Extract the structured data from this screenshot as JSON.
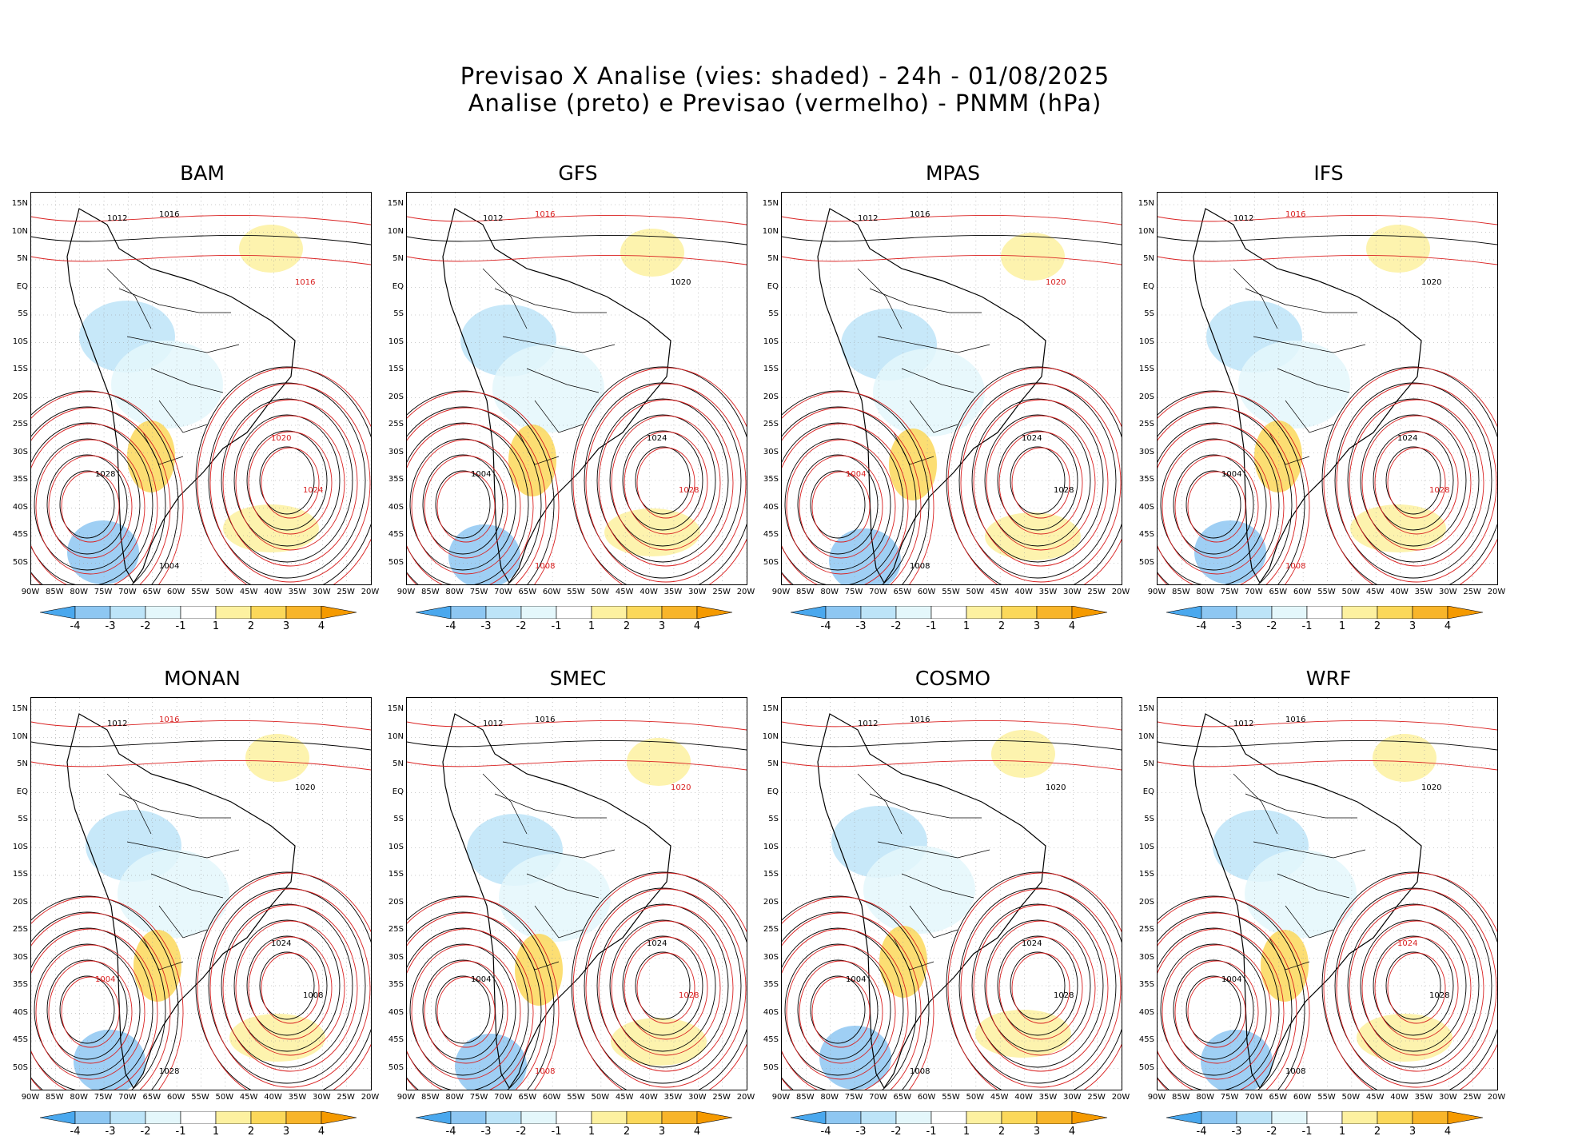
{
  "title": {
    "line1": "Previsao X Analise (vies: shaded) - 24h - 01/08/2025",
    "line2": "Analise (preto) e Previsao (vermelho) - PNMM (hPa)"
  },
  "lat_labels": [
    "15N",
    "10N",
    "5N",
    "EQ",
    "5S",
    "10S",
    "15S",
    "20S",
    "25S",
    "30S",
    "35S",
    "40S",
    "45S",
    "50S"
  ],
  "lon_labels": [
    "90W",
    "85W",
    "80W",
    "75W",
    "70W",
    "65W",
    "60W",
    "55W",
    "50W",
    "45W",
    "40W",
    "35W",
    "30W",
    "25W",
    "20W"
  ],
  "colorbar": {
    "labels": [
      "-4",
      "-3",
      "-2",
      "-1",
      "1",
      "2",
      "3",
      "4"
    ],
    "colors": [
      "#4aa8ee",
      "#8ec7f2",
      "#bde4f8",
      "#e4f7fb",
      "#ffffff",
      "#fdf1a0",
      "#fbd85a",
      "#f8b52a",
      "#f59a00"
    ]
  },
  "colors": {
    "analysis": "#000000",
    "forecast": "#d92121",
    "grid": "#999999"
  },
  "panels": [
    {
      "name": "BAM",
      "isobars": [
        {
          "label": "1012",
          "color": "black"
        },
        {
          "label": "1016",
          "color": "black"
        },
        {
          "label": "1016",
          "color": "red"
        },
        {
          "label": "1020",
          "color": "red"
        },
        {
          "label": "1024",
          "color": "red"
        },
        {
          "label": "1028",
          "color": "black"
        },
        {
          "label": "1004",
          "color": "black"
        }
      ]
    },
    {
      "name": "GFS",
      "isobars": [
        {
          "label": "1012",
          "color": "black"
        },
        {
          "label": "1016",
          "color": "red"
        },
        {
          "label": "1020",
          "color": "black"
        },
        {
          "label": "1024",
          "color": "black"
        },
        {
          "label": "1028",
          "color": "red"
        },
        {
          "label": "1004",
          "color": "black"
        },
        {
          "label": "1008",
          "color": "red"
        }
      ]
    },
    {
      "name": "MPAS",
      "isobars": [
        {
          "label": "1012",
          "color": "black"
        },
        {
          "label": "1016",
          "color": "black"
        },
        {
          "label": "1020",
          "color": "red"
        },
        {
          "label": "1024",
          "color": "black"
        },
        {
          "label": "1028",
          "color": "black"
        },
        {
          "label": "1004",
          "color": "red"
        },
        {
          "label": "1008",
          "color": "black"
        }
      ]
    },
    {
      "name": "IFS",
      "isobars": [
        {
          "label": "1012",
          "color": "black"
        },
        {
          "label": "1016",
          "color": "red"
        },
        {
          "label": "1020",
          "color": "black"
        },
        {
          "label": "1024",
          "color": "black"
        },
        {
          "label": "1028",
          "color": "red"
        },
        {
          "label": "1004",
          "color": "black"
        },
        {
          "label": "1008",
          "color": "red"
        }
      ]
    },
    {
      "name": "MONAN",
      "isobars": [
        {
          "label": "1012",
          "color": "black"
        },
        {
          "label": "1016",
          "color": "red"
        },
        {
          "label": "1020",
          "color": "black"
        },
        {
          "label": "1024",
          "color": "black"
        },
        {
          "label": "1008",
          "color": "black"
        },
        {
          "label": "1004",
          "color": "red"
        },
        {
          "label": "1028",
          "color": "black"
        }
      ]
    },
    {
      "name": "SMEC",
      "isobars": [
        {
          "label": "1012",
          "color": "black"
        },
        {
          "label": "1016",
          "color": "black"
        },
        {
          "label": "1020",
          "color": "red"
        },
        {
          "label": "1024",
          "color": "black"
        },
        {
          "label": "1028",
          "color": "red"
        },
        {
          "label": "1004",
          "color": "black"
        },
        {
          "label": "1008",
          "color": "red"
        }
      ]
    },
    {
      "name": "COSMO",
      "isobars": [
        {
          "label": "1012",
          "color": "black"
        },
        {
          "label": "1016",
          "color": "black"
        },
        {
          "label": "1020",
          "color": "black"
        },
        {
          "label": "1024",
          "color": "black"
        },
        {
          "label": "1028",
          "color": "black"
        },
        {
          "label": "1004",
          "color": "black"
        },
        {
          "label": "1008",
          "color": "black"
        }
      ]
    },
    {
      "name": "WRF",
      "isobars": [
        {
          "label": "1012",
          "color": "black"
        },
        {
          "label": "1016",
          "color": "black"
        },
        {
          "label": "1020",
          "color": "black"
        },
        {
          "label": "1024",
          "color": "red"
        },
        {
          "label": "1028",
          "color": "black"
        },
        {
          "label": "1004",
          "color": "black"
        },
        {
          "label": "1008",
          "color": "black"
        }
      ]
    }
  ]
}
